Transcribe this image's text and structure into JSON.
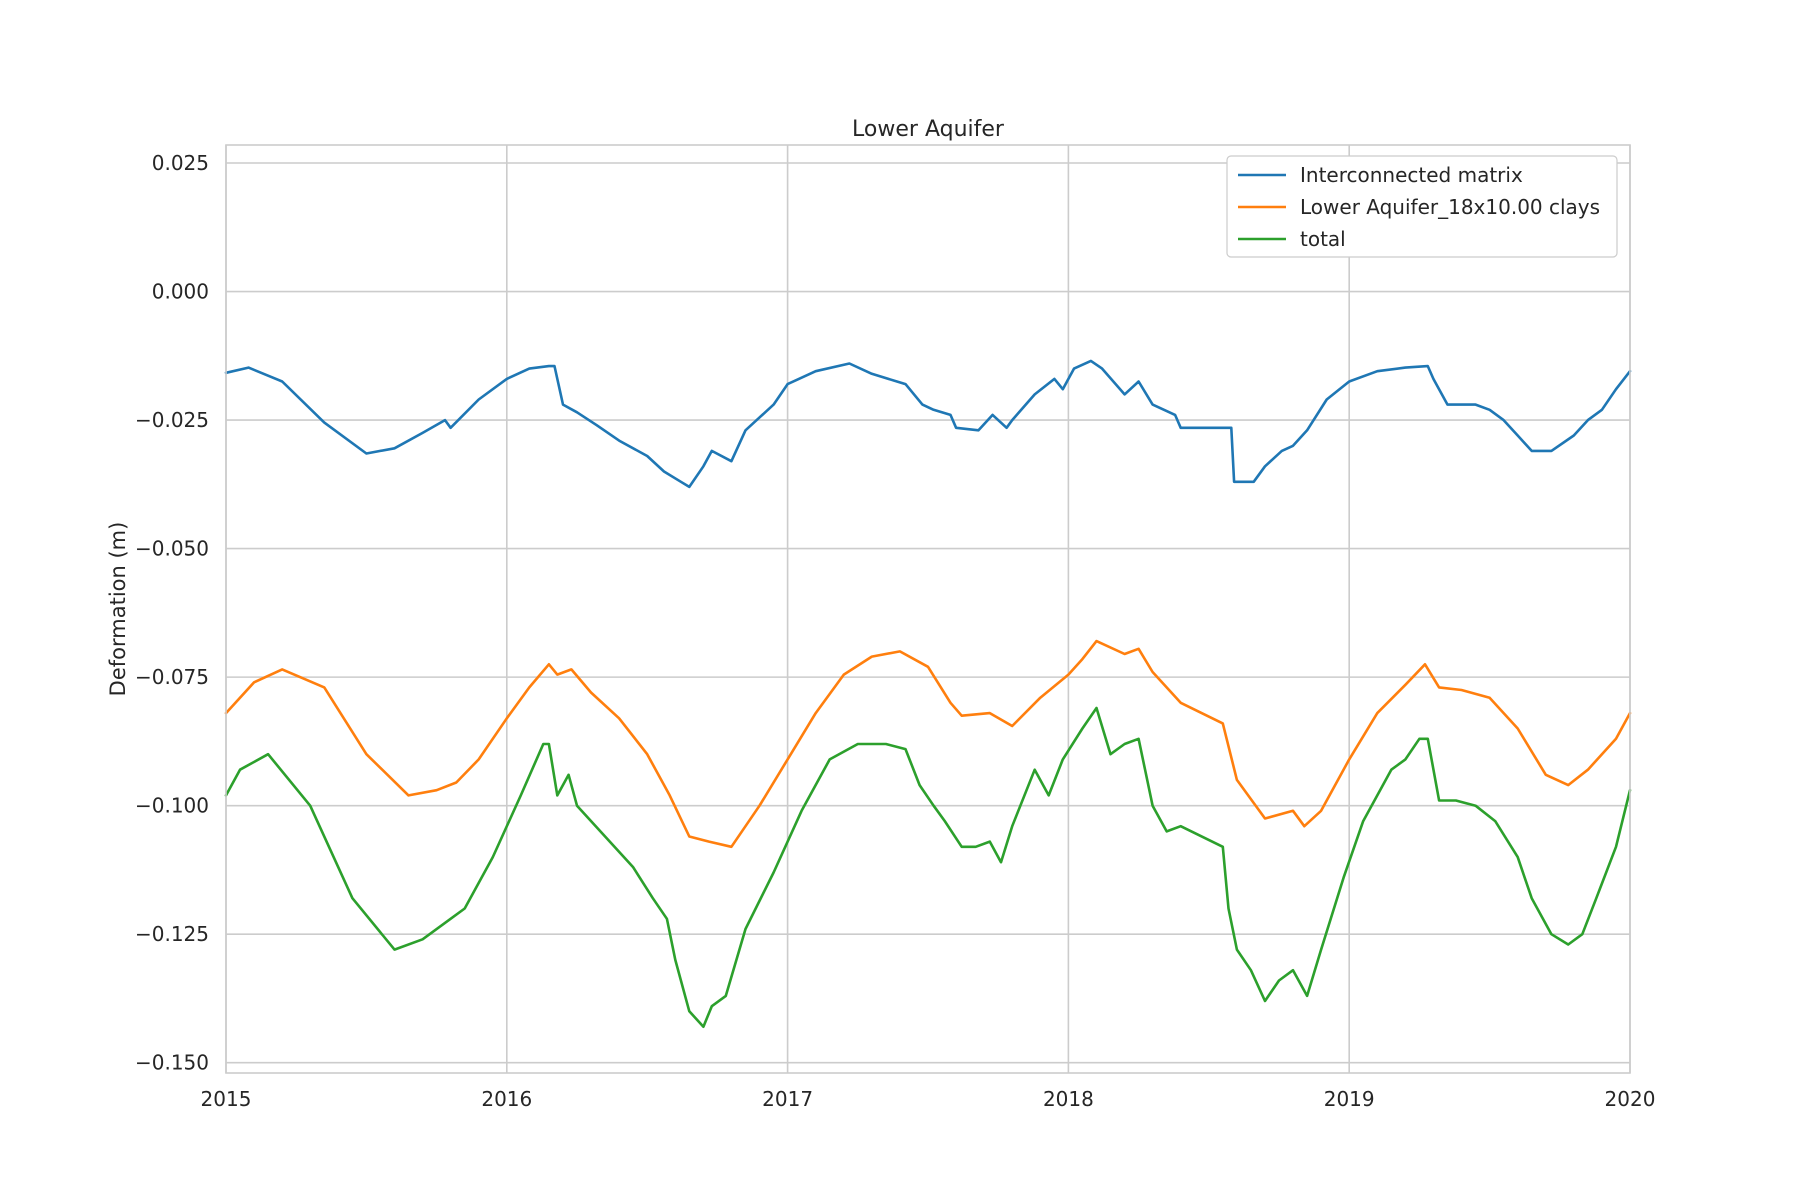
{
  "chart_data": {
    "type": "line",
    "title": "Lower Aquifer",
    "xlabel": "",
    "ylabel": "Deformation (m)",
    "xlim": [
      2015,
      2020
    ],
    "ylim": [
      -0.152,
      0.0285
    ],
    "xticks": [
      2015,
      2016,
      2017,
      2018,
      2019,
      2020
    ],
    "xtick_labels": [
      "2015",
      "2016",
      "2017",
      "2018",
      "2019",
      "2020"
    ],
    "yticks": [
      0.025,
      0.0,
      -0.025,
      -0.05,
      -0.075,
      -0.1,
      -0.125,
      -0.15
    ],
    "ytick_labels": [
      "0.025",
      "0.000",
      "−0.025",
      "−0.050",
      "−0.075",
      "−0.100",
      "−0.125",
      "−0.150"
    ],
    "grid": true,
    "legend_position": "top-right",
    "series": [
      {
        "name": "Interconnected matrix",
        "color": "#1f77b4",
        "x": [
          2015.0,
          2015.08,
          2015.2,
          2015.35,
          2015.5,
          2015.6,
          2015.7,
          2015.78,
          2015.8,
          2015.9,
          2016.0,
          2016.08,
          2016.15,
          2016.17,
          2016.2,
          2016.25,
          2016.32,
          2016.4,
          2016.5,
          2016.56,
          2016.62,
          2016.65,
          2016.7,
          2016.73,
          2016.8,
          2016.85,
          2016.95,
          2017.0,
          2017.1,
          2017.22,
          2017.3,
          2017.42,
          2017.48,
          2017.52,
          2017.58,
          2017.6,
          2017.68,
          2017.73,
          2017.78,
          2017.8,
          2017.88,
          2017.95,
          2017.98,
          2018.02,
          2018.08,
          2018.12,
          2018.2,
          2018.25,
          2018.3,
          2018.38,
          2018.4,
          2018.45,
          2018.5,
          2018.58,
          2018.59,
          2018.66,
          2018.7,
          2018.76,
          2018.8,
          2018.85,
          2018.92,
          2019.0,
          2019.1,
          2019.2,
          2019.28,
          2019.3,
          2019.35,
          2019.45,
          2019.5,
          2019.55,
          2019.6,
          2019.65,
          2019.72,
          2019.8,
          2019.85,
          2019.9,
          2019.95,
          2020.0
        ],
        "y": [
          -0.0158,
          -0.0148,
          -0.0175,
          -0.0255,
          -0.0315,
          -0.0305,
          -0.0275,
          -0.025,
          -0.0265,
          -0.021,
          -0.017,
          -0.015,
          -0.0145,
          -0.0145,
          -0.022,
          -0.0235,
          -0.026,
          -0.029,
          -0.032,
          -0.035,
          -0.037,
          -0.038,
          -0.034,
          -0.031,
          -0.033,
          -0.027,
          -0.022,
          -0.018,
          -0.0155,
          -0.014,
          -0.016,
          -0.018,
          -0.022,
          -0.023,
          -0.024,
          -0.0265,
          -0.027,
          -0.024,
          -0.0265,
          -0.025,
          -0.02,
          -0.017,
          -0.019,
          -0.015,
          -0.0135,
          -0.015,
          -0.02,
          -0.0175,
          -0.022,
          -0.024,
          -0.0265,
          -0.0265,
          -0.0265,
          -0.0265,
          -0.037,
          -0.037,
          -0.034,
          -0.031,
          -0.03,
          -0.027,
          -0.021,
          -0.0175,
          -0.0155,
          -0.0148,
          -0.0145,
          -0.017,
          -0.022,
          -0.022,
          -0.023,
          -0.025,
          -0.028,
          -0.031,
          -0.031,
          -0.028,
          -0.025,
          -0.023,
          -0.019,
          -0.0155
        ]
      },
      {
        "name": "Lower Aquifer_18x10.00 clays",
        "color": "#ff7f0e",
        "x": [
          2015.0,
          2015.1,
          2015.2,
          2015.35,
          2015.5,
          2015.65,
          2015.75,
          2015.82,
          2015.9,
          2016.0,
          2016.08,
          2016.15,
          2016.18,
          2016.23,
          2016.3,
          2016.4,
          2016.5,
          2016.58,
          2016.65,
          2016.72,
          2016.8,
          2016.9,
          2017.0,
          2017.1,
          2017.2,
          2017.3,
          2017.4,
          2017.5,
          2017.58,
          2017.62,
          2017.72,
          2017.8,
          2017.9,
          2018.0,
          2018.05,
          2018.1,
          2018.2,
          2018.25,
          2018.3,
          2018.4,
          2018.55,
          2018.6,
          2018.7,
          2018.8,
          2018.84,
          2018.9,
          2019.0,
          2019.1,
          2019.2,
          2019.27,
          2019.32,
          2019.4,
          2019.5,
          2019.6,
          2019.7,
          2019.78,
          2019.85,
          2019.95,
          2020.0
        ],
        "y": [
          -0.082,
          -0.076,
          -0.0735,
          -0.077,
          -0.09,
          -0.098,
          -0.097,
          -0.0955,
          -0.091,
          -0.083,
          -0.077,
          -0.0725,
          -0.0745,
          -0.0735,
          -0.078,
          -0.083,
          -0.09,
          -0.098,
          -0.106,
          -0.107,
          -0.108,
          -0.1,
          -0.091,
          -0.082,
          -0.0745,
          -0.071,
          -0.07,
          -0.073,
          -0.08,
          -0.0825,
          -0.082,
          -0.0845,
          -0.079,
          -0.0745,
          -0.0715,
          -0.068,
          -0.0705,
          -0.0695,
          -0.074,
          -0.08,
          -0.084,
          -0.095,
          -0.1025,
          -0.101,
          -0.104,
          -0.101,
          -0.091,
          -0.082,
          -0.0765,
          -0.0725,
          -0.077,
          -0.0775,
          -0.079,
          -0.085,
          -0.094,
          -0.096,
          -0.093,
          -0.087,
          -0.082
        ]
      },
      {
        "name": "total",
        "color": "#2ca02c",
        "x": [
          2015.0,
          2015.05,
          2015.15,
          2015.3,
          2015.45,
          2015.6,
          2015.7,
          2015.8,
          2015.85,
          2015.95,
          2016.05,
          2016.13,
          2016.15,
          2016.18,
          2016.22,
          2016.25,
          2016.35,
          2016.45,
          2016.52,
          2016.57,
          2016.6,
          2016.65,
          2016.7,
          2016.73,
          2016.78,
          2016.85,
          2016.95,
          2017.05,
          2017.15,
          2017.25,
          2017.35,
          2017.42,
          2017.47,
          2017.52,
          2017.56,
          2017.62,
          2017.67,
          2017.72,
          2017.76,
          2017.8,
          2017.88,
          2017.93,
          2017.98,
          2018.05,
          2018.1,
          2018.15,
          2018.2,
          2018.25,
          2018.3,
          2018.35,
          2018.4,
          2018.55,
          2018.57,
          2018.6,
          2018.65,
          2018.7,
          2018.75,
          2018.8,
          2018.85,
          2018.9,
          2018.98,
          2019.05,
          2019.15,
          2019.2,
          2019.25,
          2019.28,
          2019.32,
          2019.38,
          2019.45,
          2019.52,
          2019.6,
          2019.65,
          2019.72,
          2019.78,
          2019.83,
          2019.88,
          2019.95,
          2020.0
        ],
        "y": [
          -0.098,
          -0.093,
          -0.09,
          -0.1,
          -0.118,
          -0.128,
          -0.126,
          -0.122,
          -0.12,
          -0.11,
          -0.098,
          -0.088,
          -0.088,
          -0.098,
          -0.094,
          -0.1,
          -0.106,
          -0.112,
          -0.118,
          -0.122,
          -0.13,
          -0.14,
          -0.143,
          -0.139,
          -0.137,
          -0.124,
          -0.113,
          -0.101,
          -0.091,
          -0.088,
          -0.088,
          -0.089,
          -0.096,
          -0.1,
          -0.103,
          -0.108,
          -0.108,
          -0.107,
          -0.111,
          -0.104,
          -0.093,
          -0.098,
          -0.091,
          -0.085,
          -0.081,
          -0.09,
          -0.088,
          -0.087,
          -0.1,
          -0.105,
          -0.104,
          -0.108,
          -0.12,
          -0.128,
          -0.132,
          -0.138,
          -0.134,
          -0.132,
          -0.137,
          -0.128,
          -0.114,
          -0.103,
          -0.093,
          -0.091,
          -0.087,
          -0.087,
          -0.099,
          -0.099,
          -0.1,
          -0.103,
          -0.11,
          -0.118,
          -0.125,
          -0.127,
          -0.125,
          -0.118,
          -0.108,
          -0.097
        ]
      }
    ]
  }
}
